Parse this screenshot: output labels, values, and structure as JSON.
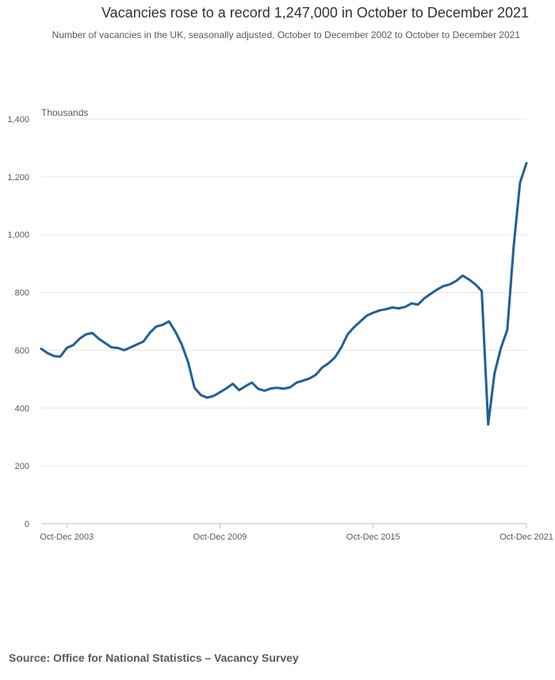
{
  "chart_data": {
    "type": "line",
    "title": "Vacancies rose to a record 1,247,000 in October to December 2021",
    "subtitle": "Number of vacancies in the UK, seasonally adjusted, October to December 2002 to October to December 2021",
    "ylabel": "Thousands",
    "xlabel": "",
    "ylim": [
      0,
      1400
    ],
    "yticks": [
      0,
      200,
      400,
      600,
      800,
      1000,
      1200,
      1400
    ],
    "ytick_labels": [
      "0",
      "200",
      "400",
      "600",
      "800",
      "1,000",
      "1,200",
      "1,400"
    ],
    "xlim": [
      "Oct-Dec 2002",
      "Oct-Dec 2021"
    ],
    "xticks": [
      "Oct-Dec 2003",
      "Oct-Dec 2009",
      "Oct-Dec 2015",
      "Oct-Dec 2021"
    ],
    "grid": "horizontal",
    "legend": "none",
    "series": [
      {
        "color": "#206095",
        "points": [
          [
            "Oct-Dec 2002",
            605
          ],
          [
            "Jan-Mar 2003",
            590
          ],
          [
            "Apr-Jun 2003",
            580
          ],
          [
            "Jul-Sep 2003",
            578
          ],
          [
            "Oct-Dec 2003",
            608
          ],
          [
            "Jan-Mar 2004",
            618
          ],
          [
            "Apr-Jun 2004",
            640
          ],
          [
            "Jul-Sep 2004",
            655
          ],
          [
            "Oct-Dec 2004",
            660
          ],
          [
            "Jan-Mar 2005",
            640
          ],
          [
            "Apr-Jun 2005",
            625
          ],
          [
            "Jul-Sep 2005",
            610
          ],
          [
            "Oct-Dec 2005",
            608
          ],
          [
            "Jan-Mar 2006",
            600
          ],
          [
            "Apr-Jun 2006",
            610
          ],
          [
            "Jul-Sep 2006",
            620
          ],
          [
            "Oct-Dec 2006",
            630
          ],
          [
            "Jan-Mar 2007",
            660
          ],
          [
            "Apr-Jun 2007",
            682
          ],
          [
            "Jul-Sep 2007",
            688
          ],
          [
            "Oct-Dec 2007",
            700
          ],
          [
            "Jan-Mar 2008",
            665
          ],
          [
            "Apr-Jun 2008",
            620
          ],
          [
            "Jul-Sep 2008",
            560
          ],
          [
            "Oct-Dec 2008",
            470
          ],
          [
            "Jan-Mar 2009",
            445
          ],
          [
            "Apr-Jun 2009",
            436
          ],
          [
            "Jul-Sep 2009",
            442
          ],
          [
            "Oct-Dec 2009",
            455
          ],
          [
            "Jan-Mar 2010",
            468
          ],
          [
            "Apr-Jun 2010",
            484
          ],
          [
            "Jul-Sep 2010",
            462
          ],
          [
            "Oct-Dec 2010",
            476
          ],
          [
            "Jan-Mar 2011",
            488
          ],
          [
            "Apr-Jun 2011",
            466
          ],
          [
            "Jul-Sep 2011",
            460
          ],
          [
            "Oct-Dec 2011",
            468
          ],
          [
            "Jan-Mar 2012",
            470
          ],
          [
            "Apr-Jun 2012",
            467
          ],
          [
            "Jul-Sep 2012",
            472
          ],
          [
            "Oct-Dec 2012",
            488
          ],
          [
            "Jan-Mar 2013",
            495
          ],
          [
            "Apr-Jun 2013",
            502
          ],
          [
            "Jul-Sep 2013",
            515
          ],
          [
            "Oct-Dec 2013",
            540
          ],
          [
            "Jan-Mar 2014",
            555
          ],
          [
            "Apr-Jun 2014",
            575
          ],
          [
            "Jul-Sep 2014",
            610
          ],
          [
            "Oct-Dec 2014",
            655
          ],
          [
            "Jan-Mar 2015",
            680
          ],
          [
            "Apr-Jun 2015",
            700
          ],
          [
            "Jul-Sep 2015",
            720
          ],
          [
            "Oct-Dec 2015",
            730
          ],
          [
            "Jan-Mar 2016",
            738
          ],
          [
            "Apr-Jun 2016",
            742
          ],
          [
            "Jul-Sep 2016",
            748
          ],
          [
            "Oct-Dec 2016",
            745
          ],
          [
            "Jan-Mar 2017",
            750
          ],
          [
            "Apr-Jun 2017",
            762
          ],
          [
            "Jul-Sep 2017",
            758
          ],
          [
            "Oct-Dec 2017",
            780
          ],
          [
            "Jan-Mar 2018",
            795
          ],
          [
            "Apr-Jun 2018",
            810
          ],
          [
            "Jul-Sep 2018",
            822
          ],
          [
            "Oct-Dec 2018",
            828
          ],
          [
            "Jan-Mar 2019",
            840
          ],
          [
            "Apr-Jun 2019",
            858
          ],
          [
            "Jul-Sep 2019",
            845
          ],
          [
            "Oct-Dec 2019",
            828
          ],
          [
            "Jan-Mar 2020",
            805
          ],
          [
            "Apr-Jun 2020",
            343
          ],
          [
            "Jul-Sep 2020",
            520
          ],
          [
            "Oct-Dec 2020",
            608
          ],
          [
            "Jan-Mar 2021",
            670
          ],
          [
            "Apr-Jun 2021",
            960
          ],
          [
            "Jul-Sep 2021",
            1180
          ],
          [
            "Oct-Dec 2021",
            1247
          ]
        ]
      }
    ]
  },
  "source": "Source: Office for National Statistics – Vacancy Survey"
}
